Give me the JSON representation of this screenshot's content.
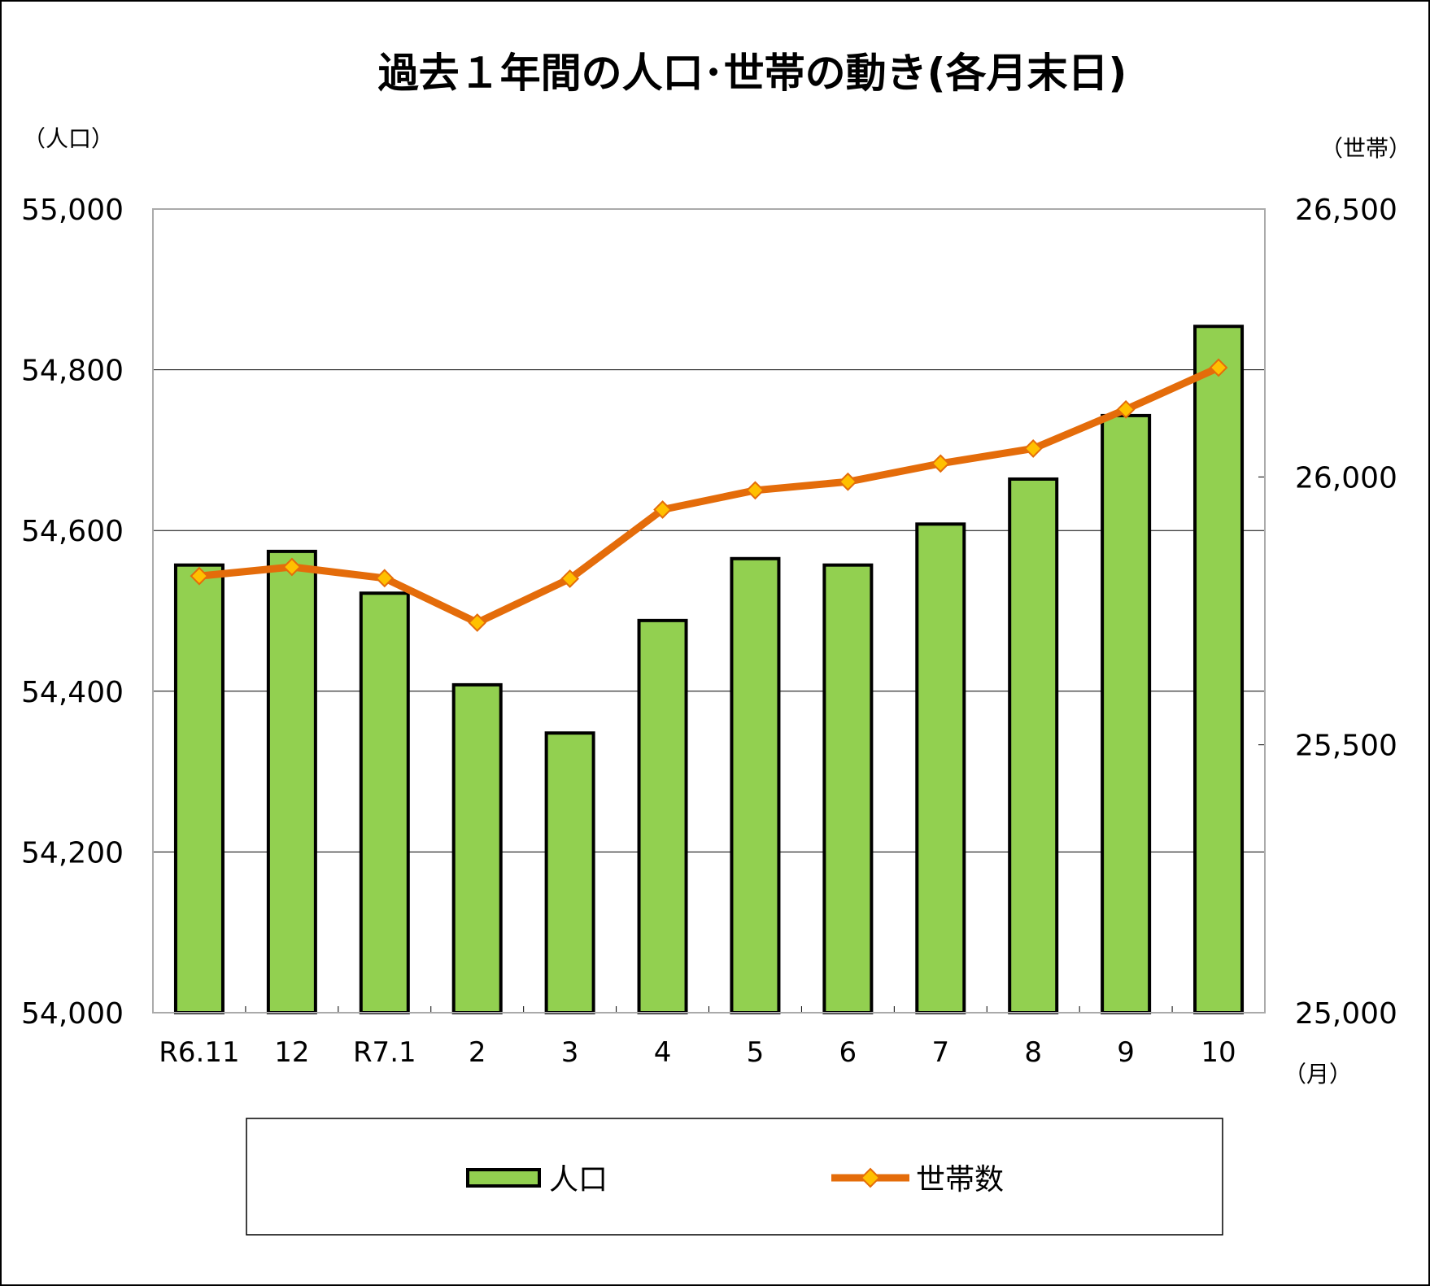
{
  "chart_data": {
    "type": "bar+line",
    "title": "過去１年間の人口･世帯の動き(各月末日)",
    "categories": [
      "R6.11",
      "12",
      "R7.1",
      "2",
      "3",
      "4",
      "5",
      "6",
      "7",
      "8",
      "9",
      "10"
    ],
    "xlabel": "（月）",
    "ylabel_left": "（人口）",
    "ylabel_right": "（世帯）",
    "ylim_left": [
      54000,
      55000
    ],
    "yticks_left": [
      "54,000",
      "54,200",
      "54,400",
      "54,600",
      "54,800",
      "55,000"
    ],
    "ylim_right": [
      25000,
      26500
    ],
    "yticks_right": [
      "25,000",
      "25,500",
      "26,000",
      "26,500"
    ],
    "grid": true,
    "legend_position": "bottom",
    "series": [
      {
        "name": "人口",
        "type": "bar",
        "axis": "left",
        "color": "#92D050",
        "values": [
          54557,
          54574,
          54522,
          54408,
          54348,
          54488,
          54565,
          54557,
          54608,
          54664,
          54743,
          54854
        ]
      },
      {
        "name": "世帯数",
        "type": "line",
        "axis": "right",
        "color": "#E46C0A",
        "marker_color": "#FFC000",
        "values": [
          25815,
          25832,
          25811,
          25728,
          25810,
          25939,
          25975,
          25991,
          26025,
          26053,
          26126,
          26204
        ]
      }
    ]
  }
}
